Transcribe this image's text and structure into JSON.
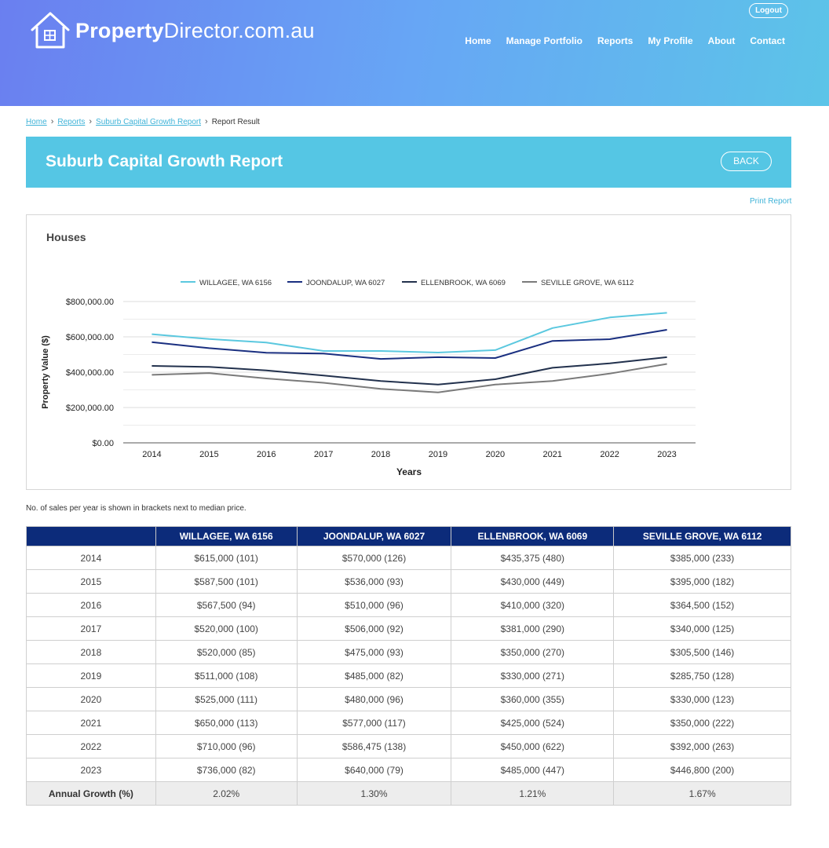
{
  "header": {
    "logo_bold": "Property",
    "logo_rest": "Director.com.au",
    "logout_label": "Logout",
    "nav": [
      "Home",
      "Manage Portfolio",
      "Reports",
      "My Profile",
      "About",
      "Contact"
    ]
  },
  "breadcrumb": {
    "items": [
      "Home",
      "Reports",
      "Suburb Capital Growth Report"
    ],
    "current": "Report Result"
  },
  "banner": {
    "title": "Suburb Capital Growth Report",
    "back_label": "BACK"
  },
  "print_label": "Print Report",
  "chart_title": "Houses",
  "chart_data": {
    "type": "line",
    "x": [
      2014,
      2015,
      2016,
      2017,
      2018,
      2019,
      2020,
      2021,
      2022,
      2023
    ],
    "xlabel": "Years",
    "ylabel": "Property Value ($)",
    "ylim": [
      0,
      800000
    ],
    "yticks": [
      "$0.00",
      "$200,000.00",
      "$400,000.00",
      "$600,000.00",
      "$800,000.00"
    ],
    "legend_position": "top",
    "grid": true,
    "series": [
      {
        "name": "WILLAGEE, WA 6156",
        "color": "#5bc8df",
        "values": [
          615000,
          587500,
          567500,
          520000,
          520000,
          511000,
          525000,
          650000,
          710000,
          736000
        ]
      },
      {
        "name": "JOONDALUP, WA 6027",
        "color": "#1a2f80",
        "values": [
          570000,
          536000,
          510000,
          506000,
          475000,
          485000,
          480000,
          577000,
          586475,
          640000
        ]
      },
      {
        "name": "ELLENBROOK, WA 6069",
        "color": "#22314d",
        "values": [
          435375,
          430000,
          410000,
          381000,
          350000,
          330000,
          360000,
          425000,
          450000,
          485000
        ]
      },
      {
        "name": "SEVILLE GROVE, WA 6112",
        "color": "#7a7a7a",
        "values": [
          385000,
          395000,
          364500,
          340000,
          305500,
          285750,
          330000,
          350000,
          392000,
          446800
        ]
      }
    ]
  },
  "note": "No. of sales per year is shown in brackets next to median price.",
  "table": {
    "headers": [
      "",
      "WILLAGEE, WA 6156",
      "JOONDALUP, WA 6027",
      "ELLENBROOK, WA 6069",
      "SEVILLE GROVE, WA 6112"
    ],
    "rows": [
      [
        "2014",
        "$615,000 (101)",
        "$570,000 (126)",
        "$435,375 (480)",
        "$385,000 (233)"
      ],
      [
        "2015",
        "$587,500 (101)",
        "$536,000 (93)",
        "$430,000 (449)",
        "$395,000 (182)"
      ],
      [
        "2016",
        "$567,500 (94)",
        "$510,000 (96)",
        "$410,000 (320)",
        "$364,500 (152)"
      ],
      [
        "2017",
        "$520,000 (100)",
        "$506,000 (92)",
        "$381,000 (290)",
        "$340,000 (125)"
      ],
      [
        "2018",
        "$520,000 (85)",
        "$475,000 (93)",
        "$350,000 (270)",
        "$305,500 (146)"
      ],
      [
        "2019",
        "$511,000 (108)",
        "$485,000 (82)",
        "$330,000 (271)",
        "$285,750 (128)"
      ],
      [
        "2020",
        "$525,000 (111)",
        "$480,000 (96)",
        "$360,000 (355)",
        "$330,000 (123)"
      ],
      [
        "2021",
        "$650,000 (113)",
        "$577,000 (117)",
        "$425,000 (524)",
        "$350,000 (222)"
      ],
      [
        "2022",
        "$710,000 (96)",
        "$586,475 (138)",
        "$450,000 (622)",
        "$392,000 (263)"
      ],
      [
        "2023",
        "$736,000 (82)",
        "$640,000 (79)",
        "$485,000 (447)",
        "$446,800 (200)"
      ]
    ],
    "growth_row": [
      "Annual Growth (%)",
      "2.02%",
      "1.30%",
      "1.21%",
      "1.67%"
    ]
  }
}
